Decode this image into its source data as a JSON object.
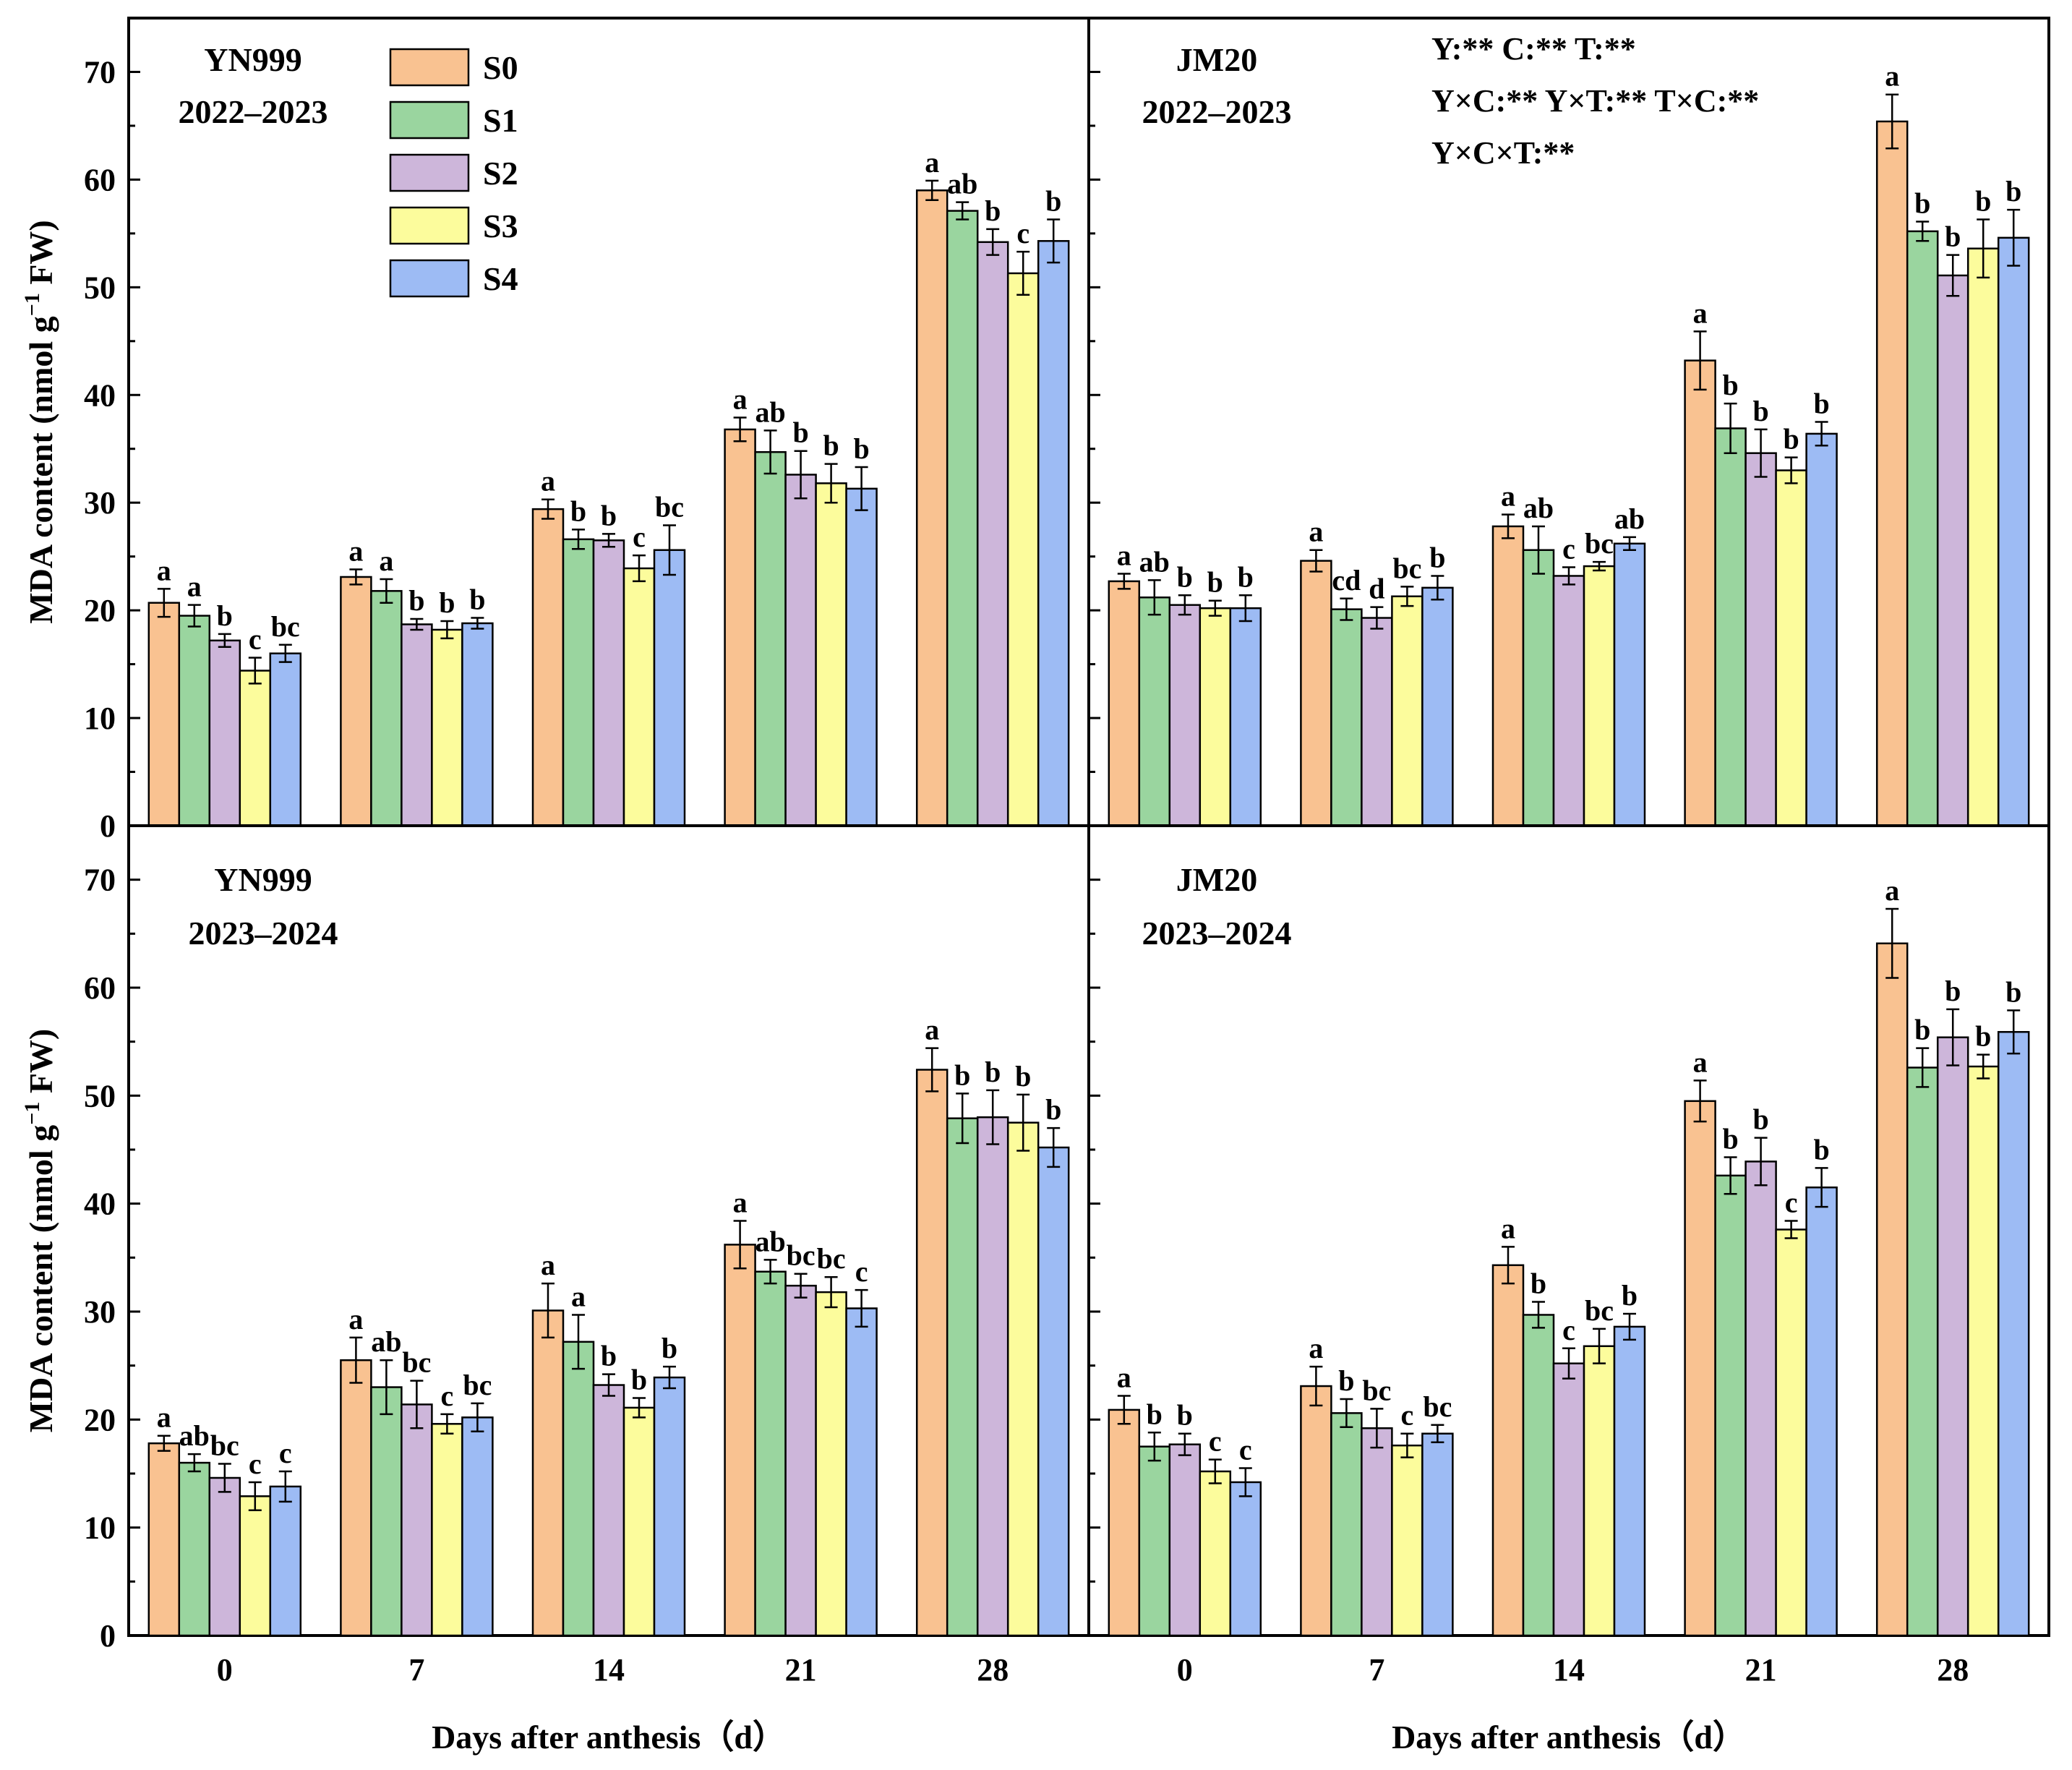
{
  "colors": {
    "S0": "#F9C291",
    "S1": "#9AD59F",
    "S2": "#CDB6DA",
    "S3": "#FCFC9C",
    "S4": "#9DBBF4",
    "stroke": "#000000"
  },
  "legend": [
    "S0",
    "S1",
    "S2",
    "S3",
    "S4"
  ],
  "stats": [
    "Y:** C:** T:**",
    "Y×C:** Y×T:** T×C:**",
    "Y×C×T:**"
  ],
  "chart_data": [
    {
      "type": "bar",
      "cultivar": "YN999",
      "season": "2022–2023",
      "categories": [
        "0",
        "7",
        "14",
        "21",
        "28"
      ],
      "xlabel": "",
      "ylabel": "MDA content (nmol g⁻¹ FW)",
      "ylim": [
        0,
        75
      ],
      "yticks": [
        0,
        10,
        20,
        30,
        40,
        50,
        60,
        70
      ],
      "series": [
        {
          "name": "S0",
          "values": [
            20.7,
            23.1,
            29.4,
            36.8,
            59.0
          ],
          "errors": [
            1.3,
            0.7,
            0.9,
            1.1,
            0.9
          ],
          "letters": [
            "a",
            "a",
            "a",
            "a",
            "a"
          ]
        },
        {
          "name": "S1",
          "values": [
            19.5,
            21.8,
            26.6,
            34.7,
            57.1
          ],
          "errors": [
            1.0,
            1.1,
            0.9,
            2.0,
            0.8
          ],
          "letters": [
            "a",
            "a",
            "b",
            "ab",
            "ab"
          ]
        },
        {
          "name": "S2",
          "values": [
            17.2,
            18.7,
            26.5,
            32.6,
            54.2
          ],
          "errors": [
            0.6,
            0.5,
            0.6,
            2.2,
            1.2
          ],
          "letters": [
            "b",
            "b",
            "b",
            "b",
            "b"
          ]
        },
        {
          "name": "S3",
          "values": [
            14.4,
            18.2,
            23.9,
            31.8,
            51.3
          ],
          "errors": [
            1.2,
            0.8,
            1.2,
            1.8,
            2.0
          ],
          "letters": [
            "c",
            "b",
            "c",
            "b",
            "c"
          ]
        },
        {
          "name": "S4",
          "values": [
            16.0,
            18.8,
            25.6,
            31.3,
            54.3
          ],
          "errors": [
            0.8,
            0.5,
            2.3,
            2.0,
            2.0
          ],
          "letters": [
            "bc",
            "b",
            "bc",
            "b",
            "b"
          ]
        }
      ]
    },
    {
      "type": "bar",
      "cultivar": "JM20",
      "season": "2022–2023",
      "categories": [
        "0",
        "7",
        "14",
        "21",
        "28"
      ],
      "xlabel": "",
      "ylabel": "",
      "ylim": [
        0,
        75
      ],
      "series": [
        {
          "name": "S0",
          "values": [
            22.7,
            24.6,
            27.8,
            43.2,
            65.4
          ],
          "errors": [
            0.7,
            1.0,
            1.1,
            2.7,
            2.5
          ],
          "letters": [
            "a",
            "a",
            "a",
            "a",
            "a"
          ]
        },
        {
          "name": "S1",
          "values": [
            21.2,
            20.1,
            25.6,
            36.9,
            55.2
          ],
          "errors": [
            1.6,
            1.0,
            2.2,
            2.3,
            0.9
          ],
          "letters": [
            "ab",
            "cd",
            "ab",
            "b",
            "b"
          ]
        },
        {
          "name": "S2",
          "values": [
            20.5,
            19.3,
            23.2,
            34.6,
            51.1
          ],
          "errors": [
            0.9,
            1.0,
            0.8,
            2.2,
            1.9
          ],
          "letters": [
            "b",
            "d",
            "c",
            "b",
            "b"
          ]
        },
        {
          "name": "S3",
          "values": [
            20.2,
            21.3,
            24.1,
            33.0,
            53.6
          ],
          "errors": [
            0.7,
            0.9,
            0.4,
            1.2,
            2.7
          ],
          "letters": [
            "b",
            "bc",
            "bc",
            "b",
            "b"
          ]
        },
        {
          "name": "S4",
          "values": [
            20.2,
            22.1,
            26.2,
            36.4,
            54.6
          ],
          "errors": [
            1.2,
            1.1,
            0.6,
            1.1,
            2.6
          ],
          "letters": [
            "b",
            "b",
            "ab",
            "b",
            "b"
          ]
        }
      ]
    },
    {
      "type": "bar",
      "cultivar": "YN999",
      "season": "2023–2024",
      "categories": [
        "0",
        "7",
        "14",
        "21",
        "28"
      ],
      "xlabel": "Days after anthesis（d）",
      "ylabel": "MDA content (nmol g⁻¹ FW)",
      "ylim": [
        0,
        75
      ],
      "yticks": [
        0,
        10,
        20,
        30,
        40,
        50,
        60,
        70
      ],
      "series": [
        {
          "name": "S0",
          "values": [
            17.8,
            25.5,
            30.1,
            36.2,
            52.4
          ],
          "errors": [
            0.7,
            2.1,
            2.5,
            2.2,
            2.0
          ],
          "letters": [
            "a",
            "a",
            "a",
            "a",
            "a"
          ]
        },
        {
          "name": "S1",
          "values": [
            16.0,
            23.0,
            27.2,
            33.7,
            47.9
          ],
          "errors": [
            0.8,
            2.5,
            2.5,
            1.1,
            2.3
          ],
          "letters": [
            "ab",
            "ab",
            "a",
            "ab",
            "b"
          ]
        },
        {
          "name": "S2",
          "values": [
            14.6,
            21.4,
            23.2,
            32.4,
            48.0
          ],
          "errors": [
            1.3,
            2.2,
            1.0,
            1.1,
            2.5
          ],
          "letters": [
            "bc",
            "bc",
            "b",
            "bc",
            "b"
          ]
        },
        {
          "name": "S3",
          "values": [
            12.9,
            19.6,
            21.1,
            31.8,
            47.5
          ],
          "errors": [
            1.3,
            0.9,
            0.9,
            1.4,
            2.6
          ],
          "letters": [
            "c",
            "c",
            "b",
            "bc",
            "b"
          ]
        },
        {
          "name": "S4",
          "values": [
            13.8,
            20.2,
            23.9,
            30.3,
            45.2
          ],
          "errors": [
            1.4,
            1.3,
            1.0,
            1.7,
            1.8
          ],
          "letters": [
            "c",
            "bc",
            "b",
            "c",
            "b"
          ]
        }
      ]
    },
    {
      "type": "bar",
      "cultivar": "JM20",
      "season": "2023–2024",
      "categories": [
        "0",
        "7",
        "14",
        "21",
        "28"
      ],
      "xlabel": "Days after anthesis（d）",
      "ylabel": "",
      "ylim": [
        0,
        75
      ],
      "series": [
        {
          "name": "S0",
          "values": [
            20.9,
            23.1,
            34.3,
            49.5,
            64.1
          ],
          "errors": [
            1.3,
            1.8,
            1.7,
            1.9,
            3.2
          ],
          "letters": [
            "a",
            "a",
            "a",
            "a",
            "a"
          ]
        },
        {
          "name": "S1",
          "values": [
            17.5,
            20.6,
            29.7,
            42.6,
            52.6
          ],
          "errors": [
            1.3,
            1.3,
            1.2,
            1.7,
            1.8
          ],
          "letters": [
            "b",
            "b",
            "b",
            "b",
            "b"
          ]
        },
        {
          "name": "S2",
          "values": [
            17.7,
            19.2,
            25.2,
            43.9,
            55.4
          ],
          "errors": [
            1.0,
            1.8,
            1.4,
            2.2,
            2.6
          ],
          "letters": [
            "b",
            "bc",
            "c",
            "b",
            "b"
          ]
        },
        {
          "name": "S3",
          "values": [
            15.2,
            17.6,
            26.8,
            37.6,
            52.7
          ],
          "errors": [
            1.1,
            1.1,
            1.6,
            0.8,
            1.1
          ],
          "letters": [
            "c",
            "c",
            "bc",
            "c",
            "b"
          ]
        },
        {
          "name": "S4",
          "values": [
            14.2,
            18.7,
            28.6,
            41.5,
            55.9
          ],
          "errors": [
            1.3,
            0.8,
            1.2,
            1.8,
            2.0
          ],
          "letters": [
            "c",
            "bc",
            "b",
            "b",
            "b"
          ]
        }
      ]
    }
  ]
}
